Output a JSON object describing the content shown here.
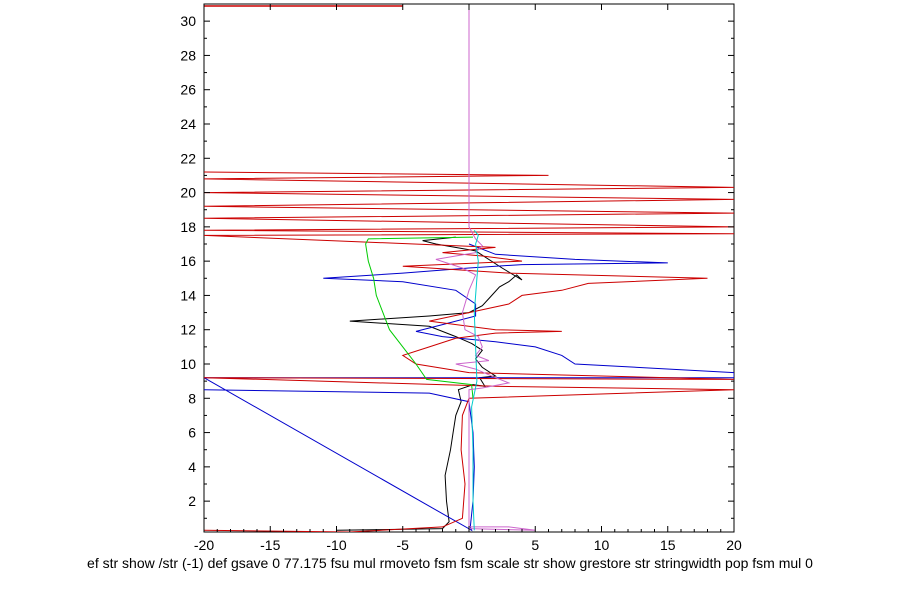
{
  "chart_data": {
    "type": "line",
    "title": "",
    "xlabel": "ef str show /str (-1) def gsave 0 77.175 fsu mul rmoveto fsm fsm scale str show grestore str stringwidth pop fsm mul 0",
    "ylabel": "",
    "xlim": [
      -20,
      20
    ],
    "ylim": [
      0.2,
      31
    ],
    "x_ticks": [
      -20,
      -15,
      -10,
      -5,
      0,
      5,
      10,
      15,
      20
    ],
    "y_ticks": [
      2,
      4,
      6,
      8,
      10,
      12,
      14,
      16,
      18,
      20,
      22,
      24,
      26,
      28,
      30
    ],
    "grid": false,
    "series": [
      {
        "name": "black",
        "color": "#000000",
        "points": [
          [
            -10,
            0.3
          ],
          [
            -2,
            0.4
          ],
          [
            -1.5,
            0.8
          ],
          [
            -1.7,
            2
          ],
          [
            -1.8,
            3.5
          ],
          [
            -1.4,
            5
          ],
          [
            -1.2,
            6
          ],
          [
            -1,
            7
          ],
          [
            -0.6,
            7.8
          ],
          [
            -0.8,
            8.5
          ],
          [
            0.3,
            8.8
          ],
          [
            1.2,
            8.7
          ],
          [
            0.8,
            9.2
          ],
          [
            2,
            9.3
          ],
          [
            1,
            9.8
          ],
          [
            0.5,
            10.3
          ],
          [
            1,
            10.8
          ],
          [
            0.2,
            11.2
          ],
          [
            -1,
            11.6
          ],
          [
            -3,
            12.2
          ],
          [
            -9,
            12.5
          ],
          [
            -3,
            12.8
          ],
          [
            0,
            13
          ],
          [
            1,
            13.4
          ],
          [
            1.6,
            13.9
          ],
          [
            2.3,
            14.5
          ],
          [
            3,
            14.8
          ],
          [
            3.6,
            15.2
          ],
          [
            4,
            14.9
          ],
          [
            2.5,
            15.6
          ],
          [
            0.5,
            16.6
          ],
          [
            -2.5,
            17
          ],
          [
            -3.5,
            17.2
          ],
          [
            -1,
            17.4
          ]
        ]
      },
      {
        "name": "blue",
        "color": "#0000cc",
        "points": [
          [
            -20,
            8.5
          ],
          [
            -3,
            8.3
          ],
          [
            0,
            7.8
          ],
          [
            0.3,
            6
          ],
          [
            0.4,
            4
          ],
          [
            0.3,
            2
          ],
          [
            0.1,
            0.5
          ],
          [
            0.2,
            0.3
          ],
          [
            -20,
            9.2
          ],
          [
            20,
            9.2
          ],
          [
            20,
            9.5
          ],
          [
            8,
            10
          ],
          [
            7,
            10.5
          ],
          [
            5,
            11
          ],
          [
            2,
            11.3
          ],
          [
            -2,
            11.6
          ],
          [
            -4,
            11.9
          ],
          [
            -2,
            12.3
          ],
          [
            0.5,
            12.8
          ],
          [
            0.5,
            13.5
          ],
          [
            -1,
            14.3
          ],
          [
            -5,
            14.8
          ],
          [
            -11,
            15
          ],
          [
            -5,
            15.3
          ],
          [
            0,
            15.6
          ],
          [
            4,
            15.8
          ],
          [
            15,
            15.9
          ],
          [
            8,
            16.1
          ],
          [
            2,
            16.4
          ],
          [
            0,
            17
          ]
        ]
      },
      {
        "name": "red",
        "color": "#cc0000",
        "points": [
          [
            -20,
            0.3
          ],
          [
            -9,
            0.2
          ],
          [
            -2,
            0.5
          ],
          [
            -0.5,
            1
          ],
          [
            -0.3,
            3
          ],
          [
            -0.6,
            5
          ],
          [
            -0.5,
            7
          ],
          [
            0,
            8
          ],
          [
            20,
            8.5
          ],
          [
            2,
            8.7
          ],
          [
            -20,
            9.2
          ],
          [
            20,
            9.1
          ],
          [
            0,
            9.5
          ],
          [
            -4,
            10
          ],
          [
            -5,
            10.5
          ],
          [
            -3,
            11
          ],
          [
            -1,
            11.5
          ],
          [
            2,
            11.8
          ],
          [
            7,
            11.9
          ],
          [
            2,
            12
          ],
          [
            -3,
            12.5
          ],
          [
            0,
            13
          ],
          [
            3,
            13.5
          ],
          [
            4,
            14
          ],
          [
            7,
            14.3
          ],
          [
            9,
            14.7
          ],
          [
            18,
            15
          ],
          [
            3,
            15.3
          ],
          [
            -5,
            15.7
          ],
          [
            4,
            16
          ],
          [
            1,
            16.3
          ],
          [
            -2,
            16.5
          ],
          [
            2,
            16.8
          ],
          [
            -20,
            17.5
          ],
          [
            20,
            17.6
          ],
          [
            -20,
            17.8
          ],
          [
            20,
            18
          ],
          [
            -20,
            18.5
          ],
          [
            20,
            18.8
          ],
          [
            -20,
            19.2
          ],
          [
            20,
            19.6
          ],
          [
            -20,
            20
          ],
          [
            20,
            20.3
          ],
          [
            -20,
            20.8
          ],
          [
            6,
            21
          ],
          [
            -20,
            21.2
          ]
        ]
      },
      {
        "name": "green",
        "color": "#00cc00",
        "points": [
          [
            0.3,
            8
          ],
          [
            0.2,
            8.8
          ],
          [
            -3.2,
            9.1
          ],
          [
            -4,
            10
          ],
          [
            -5,
            11
          ],
          [
            -6,
            12
          ],
          [
            -6.5,
            13
          ],
          [
            -7,
            14
          ],
          [
            -7.2,
            15
          ],
          [
            -7.6,
            16
          ],
          [
            -7.8,
            17
          ],
          [
            -7.6,
            17.3
          ],
          [
            0.3,
            17.4
          ]
        ]
      },
      {
        "name": "violet",
        "color": "#cc66cc",
        "points": [
          [
            0,
            0.3
          ],
          [
            0,
            0.5
          ],
          [
            3,
            0.5
          ],
          [
            5,
            0.3
          ],
          [
            0,
            0.4
          ],
          [
            0,
            8.5
          ],
          [
            1,
            8.6
          ],
          [
            3,
            8.9
          ],
          [
            2,
            9.2
          ],
          [
            0.5,
            9.7
          ],
          [
            -1,
            10
          ],
          [
            1.5,
            10.2
          ],
          [
            0.5,
            10.5
          ],
          [
            1,
            11
          ],
          [
            0.7,
            11.6
          ],
          [
            -0.3,
            12
          ],
          [
            -0.5,
            13
          ],
          [
            0,
            14.3
          ],
          [
            0.5,
            15.2
          ],
          [
            -0.5,
            15.6
          ],
          [
            -2.5,
            16.1
          ],
          [
            0.5,
            16.5
          ],
          [
            1,
            16.9
          ],
          [
            0.5,
            17.3
          ],
          [
            0,
            18
          ],
          [
            0,
            31
          ]
        ]
      },
      {
        "name": "cyan",
        "color": "#00cccc",
        "points": [
          [
            0.4,
            0.3
          ],
          [
            0.3,
            2
          ],
          [
            0.3,
            5
          ],
          [
            0.2,
            7.5
          ],
          [
            0.6,
            9
          ],
          [
            0.5,
            11
          ],
          [
            0.4,
            13
          ],
          [
            0.6,
            15
          ],
          [
            0.7,
            16
          ],
          [
            0.5,
            17
          ],
          [
            0.7,
            17.5
          ],
          [
            0.4,
            17.8
          ]
        ]
      }
    ]
  }
}
